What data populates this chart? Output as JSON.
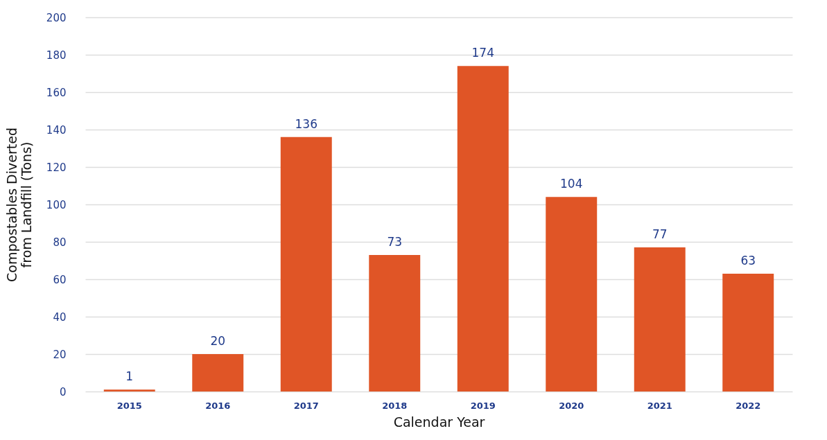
{
  "chart_data": {
    "type": "bar",
    "xlabel": "Calendar Year",
    "ylabel": "Compostables Diverted\nfrom Landfill (Tons)",
    "categories": [
      "2015",
      "2016",
      "2017",
      "2018",
      "2019",
      "2020",
      "2021",
      "2022"
    ],
    "values": [
      1,
      20,
      136,
      73,
      174,
      104,
      77,
      63
    ],
    "color": "#e05526",
    "ylim": [
      0,
      200
    ],
    "yticks": [
      0,
      20,
      40,
      60,
      80,
      100,
      120,
      140,
      160,
      180,
      200
    ],
    "grid": "y",
    "data_labels": true
  }
}
